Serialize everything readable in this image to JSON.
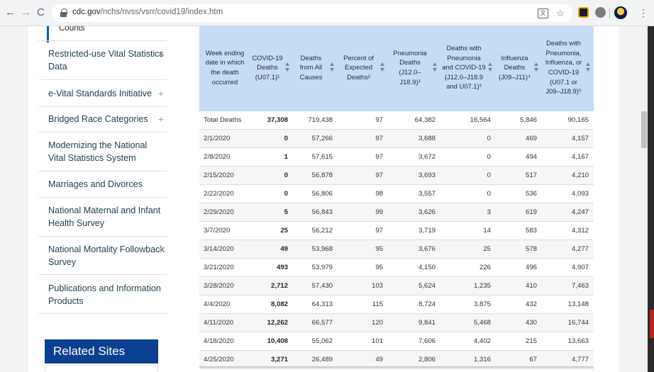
{
  "browser": {
    "url_host": "cdc.gov",
    "url_path": "/nchs/nvss/vsrr/covid19/index.htm",
    "nav": {
      "back": "←",
      "forward": "→",
      "reload": "C"
    },
    "icons": {
      "translate": "文",
      "star": "☆",
      "menu": "⋮"
    }
  },
  "sidebar": {
    "counts_label": "Counts",
    "items": [
      {
        "label": "Restricted-use Vital Statistics Data",
        "has_plus": true
      },
      {
        "label": "e-Vital Standards Initiative",
        "has_plus": true
      },
      {
        "label": "Bridged Race Categories",
        "has_plus": true
      },
      {
        "label": "Modernizing the National Vital Statistics System",
        "has_plus": false
      },
      {
        "label": "Marriages and Divorces",
        "has_plus": false
      },
      {
        "label": "National Maternal and Infant Health Survey",
        "has_plus": false
      },
      {
        "label": "National Mortality Followback Survey",
        "has_plus": true
      },
      {
        "label": "Publications and Information Products",
        "has_plus": false
      }
    ],
    "plus_glyph": "+",
    "related_sites": "Related Sites"
  },
  "table": {
    "headers": [
      "Week ending date in which the death occurred",
      "COVID-19 Deaths (U07.1)¹",
      "Deaths from All Causes",
      "Percent of Expected Deaths²",
      "Pneumonia Deaths (J12.0–J18.9)³",
      "Deaths with Pneumonia and COVID-19 (J12.0–J18.9 and U07.1)³",
      "Influenza Deaths (J09–J11)⁴",
      "Deaths with Pneumonia, Influenza, or COVID-19 (U07.1 or J09–J18.9)⁵"
    ],
    "rows": [
      [
        "Total Deaths",
        "37,308",
        "719,438",
        "97",
        "64,382",
        "16,564",
        "5,846",
        "90,165"
      ],
      [
        "2/1/2020",
        "0",
        "57,266",
        "97",
        "3,688",
        "0",
        "469",
        "4,157"
      ],
      [
        "2/8/2020",
        "1",
        "57,615",
        "97",
        "3,672",
        "0",
        "494",
        "4,167"
      ],
      [
        "2/15/2020",
        "0",
        "56,878",
        "97",
        "3,693",
        "0",
        "517",
        "4,210"
      ],
      [
        "2/22/2020",
        "0",
        "56,806",
        "98",
        "3,557",
        "0",
        "536",
        "4,093"
      ],
      [
        "2/29/2020",
        "5",
        "56,843",
        "99",
        "3,626",
        "3",
        "619",
        "4,247"
      ],
      [
        "3/7/2020",
        "25",
        "56,212",
        "97",
        "3,719",
        "14",
        "583",
        "4,312"
      ],
      [
        "3/14/2020",
        "49",
        "53,968",
        "95",
        "3,676",
        "25",
        "578",
        "4,277"
      ],
      [
        "3/21/2020",
        "493",
        "53,979",
        "95",
        "4,150",
        "226",
        "496",
        "4,907"
      ],
      [
        "3/28/2020",
        "2,712",
        "57,430",
        "103",
        "5,624",
        "1,235",
        "410",
        "7,463"
      ],
      [
        "4/4/2020",
        "8,082",
        "64,313",
        "115",
        "8,724",
        "3,875",
        "432",
        "13,148"
      ],
      [
        "4/11/2020",
        "12,262",
        "66,577",
        "120",
        "9,841",
        "5,468",
        "430",
        "16,744"
      ],
      [
        "4/18/2020",
        "10,408",
        "55,062",
        "101",
        "7,606",
        "4,402",
        "215",
        "13,663"
      ],
      [
        "4/25/2020",
        "3,271",
        "26,489",
        "49",
        "2,806",
        "1,316",
        "67",
        "4,777"
      ]
    ]
  }
}
